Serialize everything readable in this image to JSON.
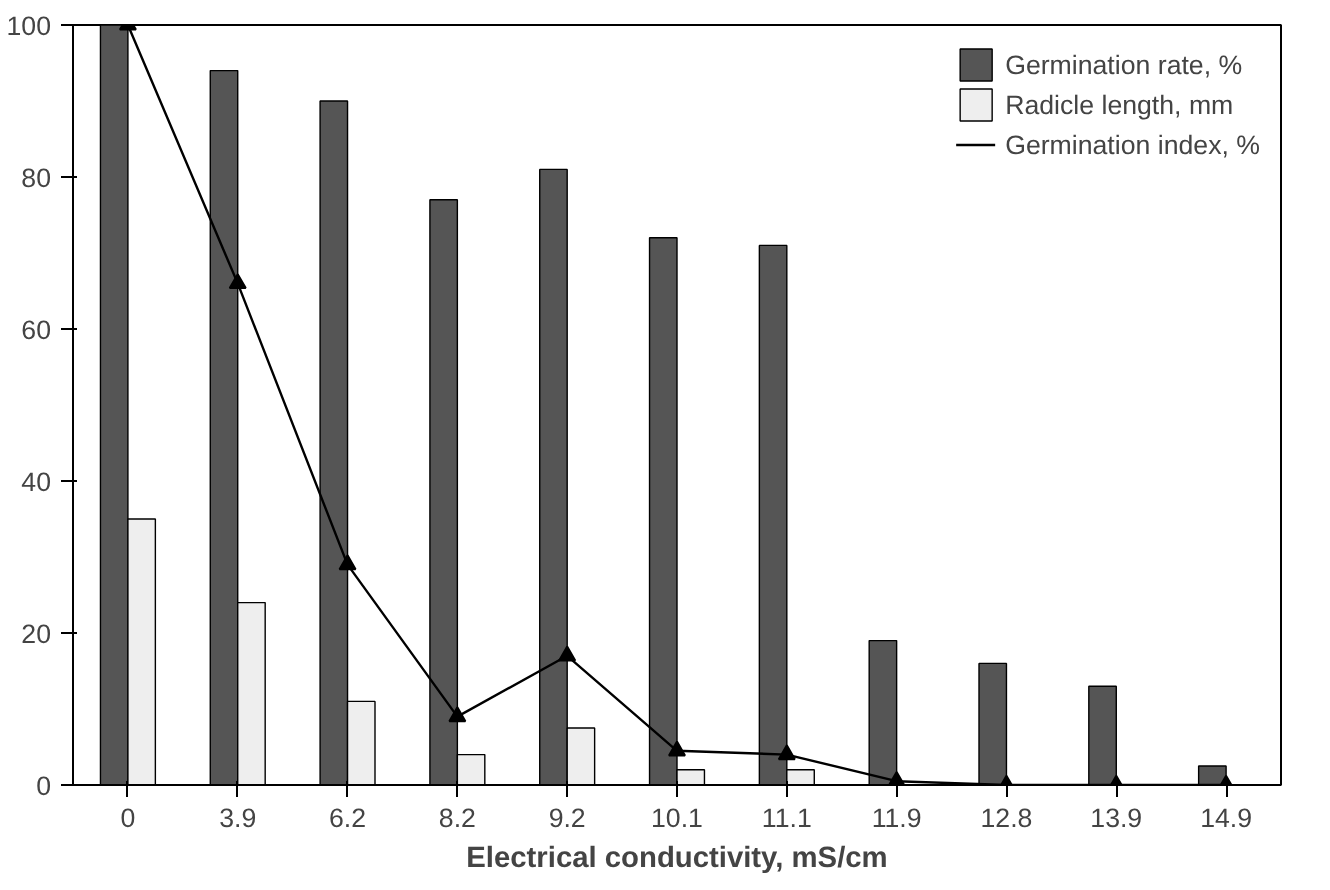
{
  "chart_data": {
    "type": "bar",
    "xlabel": "Electrical conductivity, mS/cm",
    "categories": [
      "0",
      "3.9",
      "6.2",
      "8.2",
      "9.2",
      "10.1",
      "11.1",
      "11.9",
      "12.8",
      "13.9",
      "14.9"
    ],
    "series": [
      {
        "name": "Germination rate, %",
        "color": "#555555",
        "values": [
          100,
          94,
          90,
          77,
          81,
          72,
          71,
          19,
          16,
          13,
          2.5
        ]
      },
      {
        "name": "Radicle length, mm",
        "color": "#eeeeee",
        "values": [
          35,
          24,
          11,
          4,
          7.5,
          2,
          2,
          null,
          0,
          0,
          0
        ]
      },
      {
        "name": "Germination index, %",
        "type": "line",
        "color": "#000000",
        "marker": "triangle",
        "values": [
          100,
          66,
          29,
          9,
          17,
          4.5,
          4,
          0.5,
          0,
          0,
          0
        ]
      }
    ],
    "ylim": [
      0,
      100
    ],
    "yticks": [
      0,
      20,
      40,
      60,
      80,
      100
    ],
    "grid": false,
    "legend": "top right"
  }
}
